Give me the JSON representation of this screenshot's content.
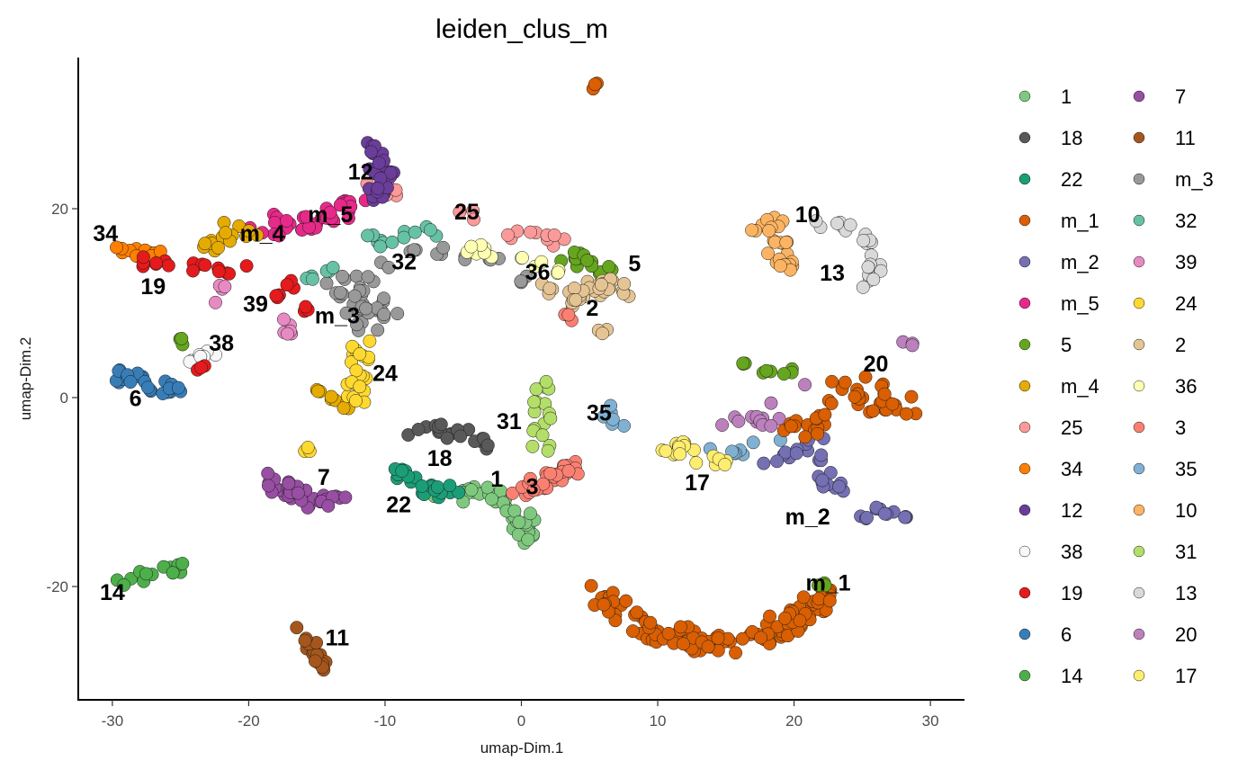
{
  "chart_data": {
    "type": "scatter",
    "title": "leiden_clus_m",
    "xlabel": "umap-Dim.1",
    "ylabel": "umap-Dim.2",
    "xlim": [
      -32.5,
      32.5
    ],
    "ylim": [
      -32,
      36
    ],
    "xticks": [
      -30,
      -20,
      -10,
      0,
      10,
      20,
      30
    ],
    "yticks": [
      -20,
      0,
      20
    ],
    "xtick_labels": [
      "-30",
      "-20",
      "-10",
      "0",
      "10",
      "20",
      "30"
    ],
    "ytick_labels": [
      "-20",
      "0",
      "20"
    ],
    "grid": false,
    "legend_position": "right",
    "legend_columns": 2,
    "series": [
      {
        "name": "1",
        "color": "#7fc97f",
        "label": {
          "x": -1.8,
          "y": -8.8
        },
        "path": [
          [
            -6,
            -10
          ],
          [
            -4,
            -10.5
          ],
          [
            -2,
            -10
          ],
          [
            -1,
            -11.5
          ],
          [
            0,
            -13
          ],
          [
            0.5,
            -15
          ]
        ],
        "spread": 1.0,
        "n": 40
      },
      {
        "name": "18",
        "color": "#595959",
        "label": {
          "x": -6,
          "y": -6.6
        },
        "path": [
          [
            -8,
            -4
          ],
          [
            -6,
            -3.5
          ],
          [
            -4,
            -4
          ],
          [
            -2.5,
            -5
          ],
          [
            -1.5,
            -7
          ]
        ],
        "spread": 0.7,
        "n": 20
      },
      {
        "name": "22",
        "color": "#1b9e77",
        "label": {
          "x": -9,
          "y": -11.5
        },
        "path": [
          [
            -11,
            -9
          ],
          [
            -9,
            -8
          ],
          [
            -7,
            -9.5
          ],
          [
            -5,
            -10
          ]
        ],
        "spread": 0.8,
        "n": 22
      },
      {
        "name": "m_1",
        "color": "#d95f02",
        "label": {
          "x": 22.5,
          "y": -19.8
        },
        "path": [
          [
            6,
            -21
          ],
          [
            9,
            -24
          ],
          [
            12,
            -25.5
          ],
          [
            15,
            -26
          ],
          [
            18,
            -25
          ],
          [
            21,
            -23
          ],
          [
            22,
            -21
          ]
        ],
        "spread": 1.2,
        "n": 110,
        "extra": [
          [
            5.4,
            33
          ]
        ]
      },
      {
        "name": "m_2",
        "color": "#7570b3",
        "label": {
          "x": 21,
          "y": -12.8
        },
        "path": [
          [
            18,
            -7
          ],
          [
            20,
            -6
          ],
          [
            21.5,
            -5
          ],
          [
            22.5,
            -8
          ],
          [
            23,
            -10.5
          ]
        ],
        "spread": 0.8,
        "n": 24,
        "extra": [
          [
            25,
            -12.5
          ],
          [
            26,
            -12
          ],
          [
            27,
            -12
          ],
          [
            28,
            -12.5
          ]
        ]
      },
      {
        "name": "m_5",
        "color": "#e7298a",
        "label": {
          "x": -14,
          "y": 19.2
        },
        "path": [
          [
            -19,
            18
          ],
          [
            -17,
            18.5
          ],
          [
            -15,
            19
          ],
          [
            -13,
            20
          ],
          [
            -11,
            21
          ]
        ],
        "spread": 1.0,
        "n": 34
      },
      {
        "name": "5",
        "color": "#66a61e",
        "label": {
          "x": 8.3,
          "y": 14
        },
        "path": [
          [
            3.5,
            15
          ],
          [
            5.5,
            14
          ],
          [
            7,
            13
          ]
        ],
        "spread": 0.6,
        "n": 16,
        "extra": [
          [
            16.5,
            3.5
          ],
          [
            18,
            3
          ],
          [
            19.5,
            2.8
          ],
          [
            22,
            -20
          ],
          [
            -25,
            6
          ]
        ]
      },
      {
        "name": "m_4",
        "color": "#e6ab02",
        "label": {
          "x": -19,
          "y": 17.2
        },
        "path": [
          [
            -23,
            16
          ],
          [
            -22,
            18
          ],
          [
            -20,
            17
          ]
        ],
        "spread": 0.8,
        "n": 16,
        "extra": [
          [
            -15,
            1
          ],
          [
            -14,
            0
          ],
          [
            -13,
            -1
          ]
        ]
      },
      {
        "name": "25",
        "color": "#fb9a99",
        "label": {
          "x": -4,
          "y": 19.5
        },
        "path": [
          [
            -1,
            17.5
          ],
          [
            1,
            17
          ],
          [
            3,
            16.5
          ],
          [
            -11,
            22
          ],
          [
            -9,
            22
          ]
        ],
        "spread": 0.7,
        "n": 20
      },
      {
        "name": "34",
        "color": "#ff7f00",
        "label": {
          "x": -30.5,
          "y": 17.2
        },
        "path": [
          [
            -30,
            15.5
          ],
          [
            -28,
            15.5
          ],
          [
            -26,
            15
          ]
        ],
        "spread": 0.5,
        "n": 14
      },
      {
        "name": "12",
        "color": "#6a3d9a",
        "label": {
          "x": -11.8,
          "y": 23.7
        },
        "path": [
          [
            -11,
            27
          ],
          [
            -10.5,
            25
          ],
          [
            -10,
            23
          ],
          [
            -11,
            21
          ]
        ],
        "spread": 0.8,
        "n": 30
      },
      {
        "name": "38",
        "color": "#f7f7f7",
        "label": {
          "x": -22,
          "y": 5.6
        },
        "path": [
          [
            -24.5,
            4
          ],
          [
            -23.5,
            4.5
          ],
          [
            -22.5,
            5
          ]
        ],
        "spread": 0.4,
        "n": 8
      },
      {
        "name": "19",
        "color": "#e41a1c",
        "label": {
          "x": -27,
          "y": 11.6
        },
        "path": [
          [
            -28,
            14.5
          ],
          [
            -26,
            14
          ],
          [
            -24,
            13.8
          ],
          [
            -22,
            13.5
          ],
          [
            -20,
            14
          ]
        ],
        "spread": 0.5,
        "n": 16,
        "extra": [
          [
            -18,
            11
          ],
          [
            -17,
            12
          ],
          [
            -16,
            9.5
          ],
          [
            -23.5,
            3
          ]
        ]
      },
      {
        "name": "6",
        "color": "#377eb8",
        "label": {
          "x": -28.3,
          "y": -0.3
        },
        "path": [
          [
            -30,
            2.5
          ],
          [
            -28,
            2
          ],
          [
            -26,
            1
          ],
          [
            -25,
            1
          ]
        ],
        "spread": 0.7,
        "n": 24
      },
      {
        "name": "14",
        "color": "#4daf4a",
        "label": {
          "x": -30,
          "y": -20.8
        },
        "path": [
          [
            -30,
            -20
          ],
          [
            -28,
            -19
          ],
          [
            -26,
            -18.5
          ],
          [
            -25,
            -18
          ]
        ],
        "spread": 0.5,
        "n": 14
      },
      {
        "name": "7",
        "color": "#984ea3",
        "label": {
          "x": -14.5,
          "y": -8.6
        },
        "path": [
          [
            -19,
            -8.5
          ],
          [
            -17,
            -10
          ],
          [
            -15,
            -11
          ],
          [
            -13,
            -11
          ]
        ],
        "spread": 0.9,
        "n": 36
      },
      {
        "name": "11",
        "color": "#a6561c",
        "label": {
          "x": -13.5,
          "y": -25.6
        },
        "path": [
          [
            -16,
            -24
          ],
          [
            -15.5,
            -26
          ],
          [
            -15,
            -28
          ],
          [
            -14.5,
            -29
          ]
        ],
        "spread": 0.5,
        "n": 16
      },
      {
        "name": "m_3",
        "color": "#999999",
        "label": {
          "x": -13.5,
          "y": 8.5
        },
        "path": [
          [
            -14,
            11
          ],
          [
            -12,
            12
          ],
          [
            -11,
            10.5
          ],
          [
            -10,
            9
          ],
          [
            -12,
            8
          ],
          [
            -10,
            14
          ]
        ],
        "spread": 1.2,
        "n": 40,
        "extra": [
          [
            -8,
            15.5
          ],
          [
            -6,
            15.5
          ],
          [
            -4,
            15
          ],
          [
            -2,
            14.5
          ],
          [
            0,
            12.5
          ]
        ]
      },
      {
        "name": "32",
        "color": "#66c2a5",
        "label": {
          "x": -8.6,
          "y": 14.2
        },
        "path": [
          [
            -11,
            17
          ],
          [
            -10,
            16
          ],
          [
            -9,
            17.5
          ],
          [
            -7,
            18
          ],
          [
            -5,
            17.5
          ]
        ],
        "spread": 0.7,
        "n": 14,
        "extra": [
          [
            -14,
            13.5
          ],
          [
            -15.5,
            12.5
          ]
        ]
      },
      {
        "name": "39",
        "color": "#e78ac3",
        "label": {
          "x": -19.5,
          "y": 9.7
        },
        "path": [
          [
            -23,
            9.5
          ],
          [
            -22.5,
            11
          ],
          [
            -22,
            12
          ],
          [
            -17,
            8
          ],
          [
            -17,
            7
          ]
        ],
        "spread": 0.5,
        "n": 10
      },
      {
        "name": "24",
        "color": "#ffd92f",
        "label": {
          "x": -10,
          "y": 2.4
        },
        "path": [
          [
            -12,
            6
          ],
          [
            -11.5,
            4
          ],
          [
            -12,
            2
          ],
          [
            -12,
            0
          ],
          [
            -11.5,
            -1
          ]
        ],
        "spread": 0.8,
        "n": 22,
        "extra": [
          [
            -15.5,
            -5.5
          ]
        ]
      },
      {
        "name": "2",
        "color": "#e5c494",
        "label": {
          "x": 5.2,
          "y": 9.3
        },
        "path": [
          [
            2,
            12
          ],
          [
            3,
            10
          ],
          [
            4.5,
            11
          ],
          [
            6,
            12
          ],
          [
            7.5,
            11
          ]
        ],
        "spread": 0.9,
        "n": 36,
        "extra": [
          [
            6,
            7
          ]
        ]
      },
      {
        "name": "36",
        "color": "#ffffb3",
        "label": {
          "x": 1.2,
          "y": 13.1
        },
        "path": [
          [
            -4,
            16
          ],
          [
            -2,
            15
          ],
          [
            0,
            14.5
          ],
          [
            2,
            14
          ],
          [
            3,
            13
          ]
        ],
        "spread": 0.5,
        "n": 14
      },
      {
        "name": "3",
        "color": "#fb8072",
        "label": {
          "x": 0.8,
          "y": -9.6
        },
        "path": [
          [
            0,
            -10
          ],
          [
            1.5,
            -9
          ],
          [
            3,
            -8
          ],
          [
            4,
            -7
          ]
        ],
        "spread": 0.9,
        "n": 30,
        "extra": [
          [
            3.5,
            8.5
          ]
        ]
      },
      {
        "name": "35",
        "color": "#80b1d3",
        "label": {
          "x": 5.7,
          "y": -1.8
        },
        "path": [
          [
            6,
            -1
          ],
          [
            6.5,
            -2
          ],
          [
            7.5,
            -3
          ],
          [
            15.5,
            -6.5
          ],
          [
            16,
            -5.5
          ],
          [
            19,
            -4
          ]
        ],
        "spread": 0.5,
        "n": 14
      },
      {
        "name": "10",
        "color": "#fdb462",
        "label": {
          "x": 21,
          "y": 19.2
        },
        "path": [
          [
            17.5,
            18
          ],
          [
            19.5,
            18.5
          ],
          [
            18.5,
            16
          ],
          [
            19,
            14
          ],
          [
            20,
            13
          ]
        ],
        "spread": 0.8,
        "n": 26
      },
      {
        "name": "31",
        "color": "#b3de69",
        "label": {
          "x": -0.9,
          "y": -2.7
        },
        "path": [
          [
            1.5,
            1.5
          ],
          [
            1.5,
            -1
          ],
          [
            1.5,
            -4
          ],
          [
            1.5,
            -6
          ]
        ],
        "spread": 0.7,
        "n": 18
      },
      {
        "name": "13",
        "color": "#d9d9d9",
        "label": {
          "x": 22.8,
          "y": 13
        },
        "path": [
          [
            21,
            18.5
          ],
          [
            23,
            18.5
          ],
          [
            25,
            17.5
          ],
          [
            26,
            15.5
          ],
          [
            26,
            13.5
          ],
          [
            25.5,
            12
          ]
        ],
        "spread": 0.6,
        "n": 24
      },
      {
        "name": "20",
        "color": "#bc80bd",
        "label": {
          "x": 26,
          "y": 3.4
        },
        "path": [
          [
            28,
            6
          ],
          [
            29,
            5.5
          ],
          [
            14,
            -3
          ],
          [
            16,
            -2.5
          ],
          [
            18,
            -2.5
          ],
          [
            19,
            -2
          ]
        ],
        "spread": 0.5,
        "n": 16
      },
      {
        "name": "17",
        "color": "#ffed6f",
        "label": {
          "x": 12.9,
          "y": -9.2
        },
        "path": [
          [
            10,
            -6
          ],
          [
            11.5,
            -5
          ],
          [
            12.5,
            -6.5
          ],
          [
            14,
            -6.5
          ],
          [
            15,
            -7
          ]
        ],
        "spread": 0.6,
        "n": 18
      }
    ],
    "extra_fill": {
      "color": "#d95f02",
      "path": [
        [
          22,
          2
        ],
        [
          24,
          1
        ],
        [
          25.5,
          -0.5
        ],
        [
          27,
          -1.5
        ],
        [
          28.5,
          -1
        ],
        [
          25,
          1.5
        ],
        [
          21,
          -3
        ],
        [
          20,
          -3.5
        ]
      ],
      "spread": 1.0,
      "n": 46
    }
  }
}
